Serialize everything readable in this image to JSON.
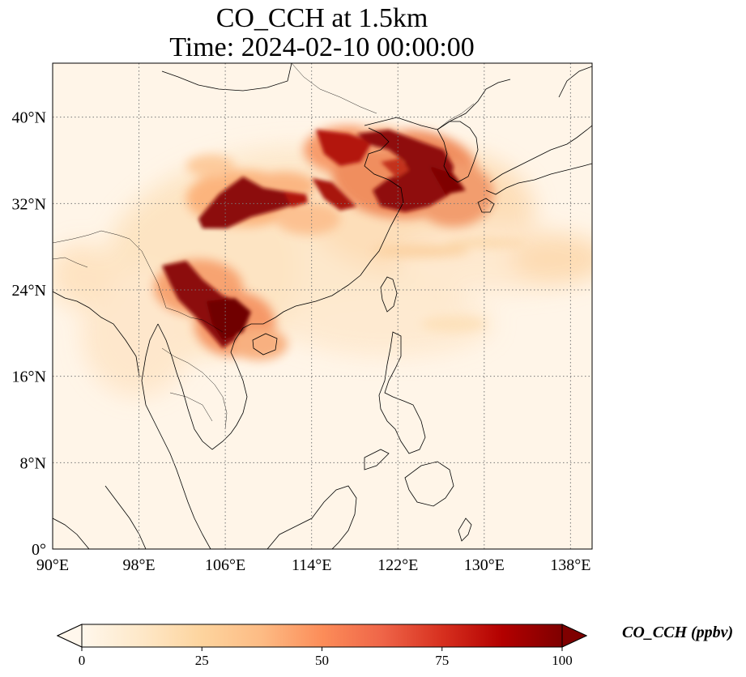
{
  "title": {
    "line1": "CO_CCH at 1.5km",
    "line2": "Time: 2024-02-10 00:00:00"
  },
  "map": {
    "lon_range": [
      90,
      140
    ],
    "lat_range": [
      0,
      45
    ],
    "lon_ticks": [
      {
        "value": 90,
        "label": "90°E"
      },
      {
        "value": 98,
        "label": "98°E"
      },
      {
        "value": 106,
        "label": "106°E"
      },
      {
        "value": 114,
        "label": "114°E"
      },
      {
        "value": 122,
        "label": "122°E"
      },
      {
        "value": 130,
        "label": "130°E"
      },
      {
        "value": 138,
        "label": "138°E"
      }
    ],
    "lat_ticks": [
      {
        "value": 0,
        "label": "0°"
      },
      {
        "value": 8,
        "label": "8°N"
      },
      {
        "value": 16,
        "label": "16°N"
      },
      {
        "value": 24,
        "label": "24°N"
      },
      {
        "value": 32,
        "label": "32°N"
      },
      {
        "value": 40,
        "label": "40°N"
      }
    ],
    "gridlines": "dotted",
    "colormap": "OrRd",
    "colors": {
      "background": "#fff5e8",
      "coastline": "#000000",
      "grid": "#777777"
    }
  },
  "colorbar": {
    "label": "CO_CCH (ppbv)",
    "min": 0,
    "max": 100,
    "extend": "both",
    "ticks": [
      {
        "value": 0,
        "label": "0"
      },
      {
        "value": 25,
        "label": "25"
      },
      {
        "value": 50,
        "label": "50"
      },
      {
        "value": 75,
        "label": "75"
      },
      {
        "value": 100,
        "label": "100"
      }
    ],
    "stops": [
      "#fff7ec",
      "#fee8c8",
      "#fdd49e",
      "#fdbb84",
      "#fc8d59",
      "#ef6548",
      "#d7301f",
      "#b30000",
      "#7f0000"
    ]
  }
}
